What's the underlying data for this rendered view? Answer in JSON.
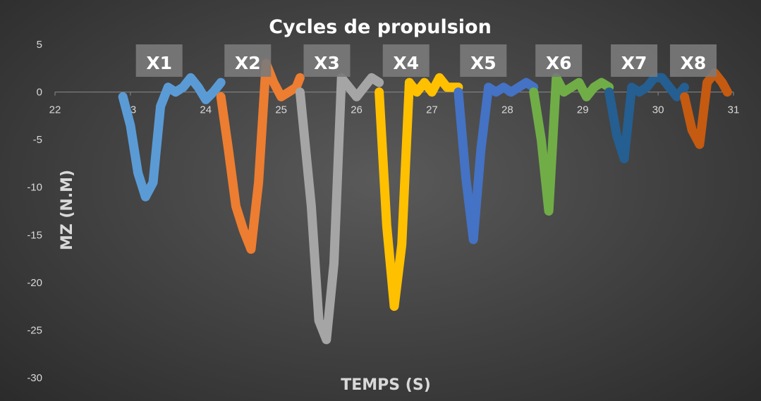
{
  "chart_data": {
    "type": "line",
    "title": "Cycles de propulsion",
    "xlabel": "TEMPS (S)",
    "ylabel": "MZ (N.M)",
    "xlim": [
      22,
      31
    ],
    "ylim": [
      -30,
      5
    ],
    "x_ticks": [
      22,
      23,
      24,
      25,
      26,
      27,
      28,
      29,
      30,
      31
    ],
    "y_ticks": [
      5,
      0,
      -5,
      -10,
      -15,
      -20,
      -25,
      -30
    ],
    "grid": false,
    "legend": "none",
    "series": [
      {
        "name": "X1",
        "color": "#5b9bd5",
        "x": [
          22.9,
          23.0,
          23.1,
          23.2,
          23.3,
          23.4,
          23.5,
          23.6,
          23.7,
          23.8,
          23.9,
          24.0,
          24.1,
          24.2
        ],
        "y": [
          -0.5,
          -3.5,
          -8.5,
          -11.0,
          -9.5,
          -1.5,
          0.5,
          0.0,
          0.5,
          1.5,
          0.5,
          -0.8,
          0.0,
          1.0
        ]
      },
      {
        "name": "X2",
        "color": "#ed7d31",
        "x": [
          24.2,
          24.3,
          24.4,
          24.5,
          24.6,
          24.7,
          24.8,
          24.9,
          25.0,
          25.1,
          25.2,
          25.25
        ],
        "y": [
          -0.5,
          -6.0,
          -12.0,
          -14.5,
          -16.5,
          -9.5,
          3.0,
          1.0,
          -0.5,
          0.0,
          0.5,
          1.5
        ]
      },
      {
        "name": "X3",
        "color": "#a5a5a5",
        "x": [
          25.25,
          25.4,
          25.5,
          25.6,
          25.7,
          25.8,
          25.9,
          26.0,
          26.1,
          26.2,
          26.3
        ],
        "y": [
          0.0,
          -12.0,
          -24.0,
          -26.0,
          -18.0,
          1.5,
          0.5,
          -0.5,
          0.5,
          1.5,
          1.0
        ]
      },
      {
        "name": "X4",
        "color": "#ffc000",
        "x": [
          26.3,
          26.4,
          26.5,
          26.6,
          26.7,
          26.8,
          26.9,
          27.0,
          27.1,
          27.2,
          27.35
        ],
        "y": [
          0.0,
          -14.0,
          -22.5,
          -16.0,
          1.0,
          0.0,
          1.0,
          0.0,
          1.5,
          0.5,
          0.5
        ]
      },
      {
        "name": "X5",
        "color": "#4472c4",
        "x": [
          27.35,
          27.45,
          27.55,
          27.65,
          27.75,
          27.85,
          27.95,
          28.05,
          28.15,
          28.25,
          28.35
        ],
        "y": [
          0.0,
          -9.0,
          -15.5,
          -6.0,
          0.5,
          0.0,
          0.5,
          0.0,
          0.5,
          1.0,
          0.5
        ]
      },
      {
        "name": "X6",
        "color": "#70ad47",
        "x": [
          28.35,
          28.45,
          28.55,
          28.65,
          28.75,
          28.85,
          28.95,
          29.05,
          29.15,
          29.25,
          29.35
        ],
        "y": [
          0.0,
          -5.0,
          -12.5,
          1.5,
          0.0,
          0.5,
          1.0,
          -0.5,
          0.5,
          1.0,
          0.5
        ]
      },
      {
        "name": "X7",
        "color": "#255e91",
        "x": [
          29.35,
          29.45,
          29.55,
          29.65,
          29.75,
          29.85,
          29.95,
          30.05,
          30.15,
          30.25,
          30.35
        ],
        "y": [
          0.0,
          -4.5,
          -7.0,
          0.5,
          0.0,
          0.5,
          1.5,
          1.5,
          0.5,
          -0.5,
          0.5
        ]
      },
      {
        "name": "X8",
        "color": "#c55a11",
        "x": [
          30.35,
          30.45,
          30.55,
          30.65,
          30.75,
          30.85,
          30.92
        ],
        "y": [
          -0.5,
          -4.0,
          -5.5,
          1.0,
          2.0,
          1.0,
          0.0
        ]
      }
    ],
    "series_labels": [
      "X1",
      "X2",
      "X3",
      "X4",
      "X5",
      "X6",
      "X7",
      "X8"
    ]
  }
}
